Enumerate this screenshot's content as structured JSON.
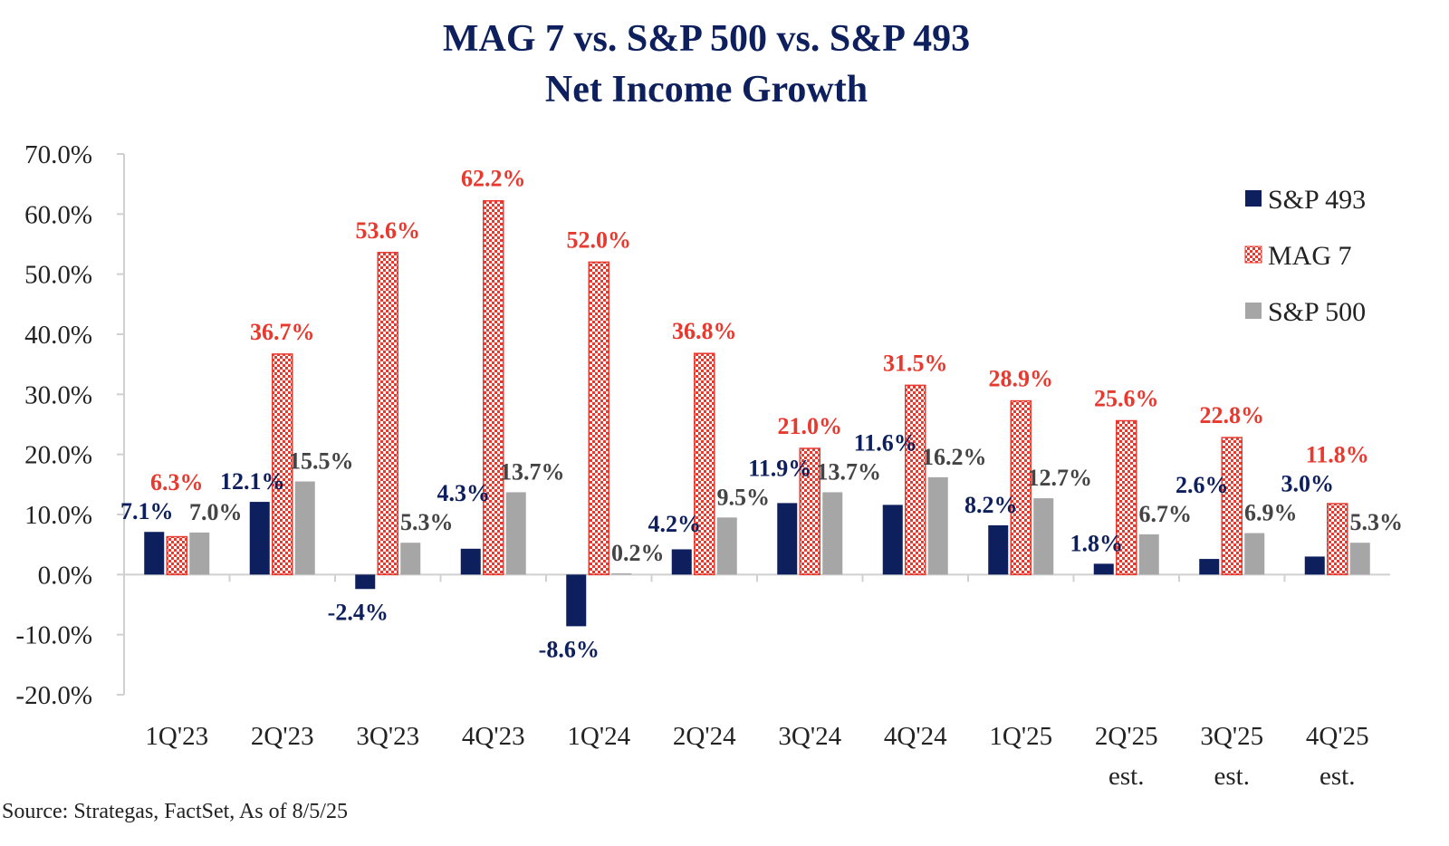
{
  "chart_data": {
    "type": "bar",
    "title": "MAG 7 vs. S&P 500 vs. S&P 493",
    "subtitle": "Net Income Growth",
    "categories": [
      "1Q'23",
      "2Q'23",
      "3Q'23",
      "4Q'23",
      "1Q'24",
      "2Q'24",
      "3Q'24",
      "4Q'24",
      "1Q'25",
      "2Q'25\nest.",
      "3Q'25\nest.",
      "4Q'25\nest."
    ],
    "series": [
      {
        "name": "S&P 493",
        "color": "#0d1f5c",
        "values": [
          7.1,
          12.1,
          -2.4,
          4.3,
          -8.6,
          4.2,
          11.9,
          11.6,
          8.2,
          1.8,
          2.6,
          3.0
        ]
      },
      {
        "name": "MAG 7",
        "color": "#e8392f",
        "pattern": "checkered",
        "values": [
          6.3,
          36.7,
          53.6,
          62.2,
          52.0,
          36.8,
          21.0,
          31.5,
          28.9,
          25.6,
          22.8,
          11.8
        ]
      },
      {
        "name": "S&P 500",
        "color": "#a6a6a6",
        "values": [
          7.0,
          15.5,
          5.3,
          13.7,
          0.2,
          9.5,
          13.7,
          16.2,
          12.7,
          6.7,
          6.9,
          5.3
        ]
      }
    ],
    "yticks": [
      "70.0%",
      "60.0%",
      "50.0%",
      "40.0%",
      "30.0%",
      "20.0%",
      "10.0%",
      "0.0%",
      "-10.0%",
      "-20.0%"
    ],
    "ylim": [
      -20,
      70
    ],
    "xlabel": "",
    "ylabel": "",
    "grid": false,
    "legend": "top-right",
    "data_labels": true
  },
  "source": "Source: Strategas, FactSet, As of 8/5/25"
}
